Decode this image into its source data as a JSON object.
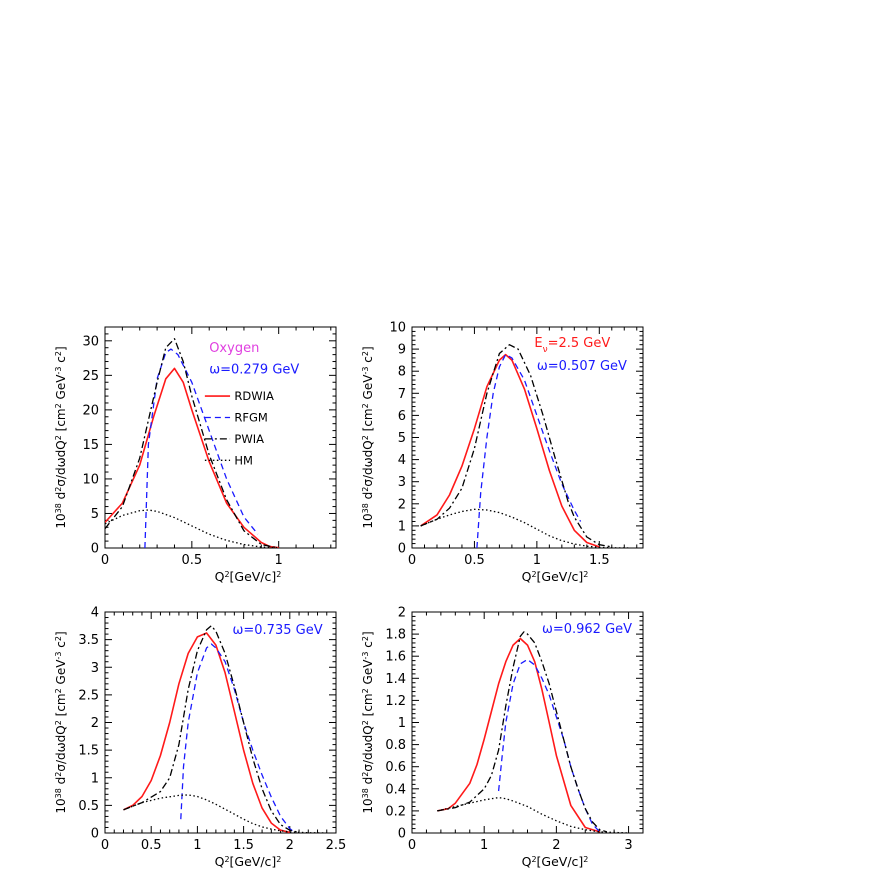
{
  "chart_data": [
    {
      "type": "line",
      "xlabel": "Q²[GeV/c]²",
      "ylabel": "10³⁸ d²σ/dωdQ² [cm² GeV⁻³ c²]",
      "xlim": [
        0,
        1.33
      ],
      "ylim": [
        0,
        32
      ],
      "xticks": [
        0,
        0.5,
        1
      ],
      "xtick_labels": [
        "0",
        "0.5",
        "1"
      ],
      "yticks": [
        0,
        5,
        10,
        15,
        20,
        25,
        30
      ],
      "ytick_labels": [
        "0",
        "5",
        "10",
        "15",
        "20",
        "25",
        "30"
      ],
      "annotations": [
        {
          "text": "Oxygen",
          "color": "#e040e0",
          "x": 0.6,
          "y": 28.4
        },
        {
          "text": "ω=0.279 GeV",
          "color": "#1a1aff",
          "x": 0.6,
          "y": 25.3
        }
      ],
      "legend": {
        "placement": "right-middle",
        "entries": [
          {
            "name": "RDWIA",
            "color": "#ff1a1a",
            "dash": "solid"
          },
          {
            "name": "RFGM",
            "color": "#1a1aff",
            "dash": "dashed"
          },
          {
            "name": "PWIA",
            "color": "#000000",
            "dash": "dashdot"
          },
          {
            "name": "HM",
            "color": "#000000",
            "dash": "dotted"
          }
        ]
      },
      "series": [
        {
          "name": "RDWIA",
          "color": "#ff1a1a",
          "dash": "solid",
          "x": [
            0,
            0.1,
            0.2,
            0.28,
            0.35,
            0.4,
            0.45,
            0.5,
            0.6,
            0.7,
            0.8,
            0.9,
            0.95,
            1.0
          ],
          "y": [
            3.7,
            6.5,
            12,
            19,
            24.5,
            26,
            24,
            20,
            12.5,
            6.5,
            3,
            0.8,
            0.2,
            0.05
          ]
        },
        {
          "name": "RFGM",
          "color": "#1a1aff",
          "dash": "dashed",
          "x": [
            0.23,
            0.25,
            0.3,
            0.35,
            0.38,
            0.42,
            0.5,
            0.6,
            0.7,
            0.8,
            0.88
          ],
          "y": [
            0,
            15,
            24.5,
            28.3,
            28.8,
            28,
            24,
            17,
            10,
            4.5,
            2.0
          ]
        },
        {
          "name": "PWIA",
          "color": "#000000",
          "dash": "dashdot",
          "x": [
            0,
            0.1,
            0.2,
            0.3,
            0.35,
            0.4,
            0.45,
            0.5,
            0.6,
            0.7,
            0.8,
            0.9,
            0.98
          ],
          "y": [
            2.8,
            6,
            13,
            24,
            29,
            30.3,
            27,
            22,
            13.5,
            7,
            2.5,
            0.5,
            0.1
          ]
        },
        {
          "name": "HM",
          "color": "#000000",
          "dash": "dotted",
          "x": [
            0,
            0.1,
            0.2,
            0.25,
            0.3,
            0.4,
            0.5,
            0.6,
            0.7,
            0.8,
            0.9,
            1.0
          ],
          "y": [
            3.5,
            4.7,
            5.4,
            5.5,
            5.3,
            4.4,
            3.2,
            2.0,
            1.1,
            0.5,
            0.15,
            0.05
          ]
        }
      ]
    },
    {
      "type": "line",
      "xlabel": "Q²[GeV/c]²",
      "ylabel": "10³⁸ d²σ/dωdQ² [cm² GeV⁻³ c²]",
      "xlim": [
        0,
        1.85
      ],
      "ylim": [
        0,
        10
      ],
      "xticks": [
        0,
        0.5,
        1,
        1.5
      ],
      "xtick_labels": [
        "0",
        "0.5",
        "1",
        "1.5"
      ],
      "yticks": [
        0,
        1,
        2,
        3,
        4,
        5,
        6,
        7,
        8,
        9,
        10
      ],
      "ytick_labels": [
        "0",
        "1",
        "2",
        "3",
        "4",
        "5",
        "6",
        "7",
        "8",
        "9",
        "10"
      ],
      "annotations": [
        {
          "text": "Eν=2.5 GeV",
          "color": "#ff1a1a",
          "x": 0.98,
          "y": 9.1
        },
        {
          "text": "ω=0.507 GeV",
          "color": "#1a1aff",
          "x": 1.0,
          "y": 8.05
        }
      ],
      "series": [
        {
          "name": "RDWIA",
          "color": "#ff1a1a",
          "dash": "solid",
          "x": [
            0.07,
            0.2,
            0.3,
            0.4,
            0.5,
            0.6,
            0.7,
            0.75,
            0.8,
            0.9,
            1.0,
            1.1,
            1.2,
            1.3,
            1.4,
            1.5
          ],
          "y": [
            1.0,
            1.5,
            2.4,
            3.7,
            5.4,
            7.3,
            8.5,
            8.75,
            8.5,
            7.2,
            5.4,
            3.5,
            1.9,
            0.8,
            0.25,
            0.05
          ]
        },
        {
          "name": "RFGM",
          "color": "#1a1aff",
          "dash": "dashed",
          "x": [
            0.52,
            0.55,
            0.6,
            0.65,
            0.7,
            0.75,
            0.8,
            0.9,
            1.0,
            1.1,
            1.2,
            1.3,
            1.35
          ],
          "y": [
            0,
            2.5,
            5,
            7,
            8.2,
            8.75,
            8.6,
            7.6,
            6.0,
            4.4,
            2.9,
            1.7,
            1.2
          ]
        },
        {
          "name": "PWIA",
          "color": "#000000",
          "dash": "dashdot",
          "x": [
            0.07,
            0.2,
            0.3,
            0.4,
            0.5,
            0.6,
            0.7,
            0.78,
            0.85,
            0.95,
            1.05,
            1.15,
            1.25,
            1.3,
            1.4,
            1.5,
            1.6
          ],
          "y": [
            1.0,
            1.3,
            1.8,
            2.7,
            4.5,
            7.0,
            8.8,
            9.2,
            9.0,
            7.8,
            6.0,
            4.0,
            2.1,
            1.4,
            0.5,
            0.15,
            0.05
          ]
        },
        {
          "name": "HM",
          "color": "#000000",
          "dash": "dotted",
          "x": [
            0.07,
            0.2,
            0.3,
            0.4,
            0.5,
            0.6,
            0.7,
            0.8,
            0.9,
            1.0,
            1.1,
            1.2,
            1.3,
            1.4,
            1.5,
            1.6,
            1.75
          ],
          "y": [
            1.0,
            1.3,
            1.5,
            1.65,
            1.75,
            1.72,
            1.6,
            1.4,
            1.15,
            0.85,
            0.55,
            0.33,
            0.18,
            0.08,
            0.03,
            0.01,
            0
          ]
        }
      ]
    },
    {
      "type": "line",
      "xlabel": "Q²[GeV/c]²",
      "ylabel": "10³⁸ d²σ/dωdQ² [cm² GeV⁻³ c²]",
      "xlim": [
        0,
        2.5
      ],
      "ylim": [
        0,
        4
      ],
      "xticks": [
        0,
        0.5,
        1,
        1.5,
        2,
        2.5
      ],
      "xtick_labels": [
        "0",
        "0.5",
        "1",
        "1.5",
        "2",
        "2.5"
      ],
      "yticks": [
        0,
        0.5,
        1,
        1.5,
        2,
        2.5,
        3,
        3.5,
        4
      ],
      "ytick_labels": [
        "0",
        "0.5",
        "1",
        "1.5",
        "2",
        "2.5",
        "3",
        "3.5",
        "4"
      ],
      "annotations": [
        {
          "text": "ω=0.735 GeV",
          "color": "#1a1aff",
          "x": 1.38,
          "y": 3.6
        }
      ],
      "series": [
        {
          "name": "RDWIA",
          "color": "#ff1a1a",
          "dash": "solid",
          "x": [
            0.2,
            0.3,
            0.4,
            0.5,
            0.6,
            0.7,
            0.8,
            0.9,
            1.0,
            1.1,
            1.2,
            1.3,
            1.4,
            1.5,
            1.6,
            1.7,
            1.8,
            1.9,
            2.0
          ],
          "y": [
            0.42,
            0.5,
            0.66,
            0.95,
            1.4,
            2.0,
            2.7,
            3.25,
            3.55,
            3.62,
            3.4,
            2.9,
            2.2,
            1.5,
            0.9,
            0.45,
            0.18,
            0.05,
            0.01
          ]
        },
        {
          "name": "RFGM",
          "color": "#1a1aff",
          "dash": "dashed",
          "x": [
            0.82,
            0.85,
            0.9,
            1.0,
            1.1,
            1.15,
            1.2,
            1.3,
            1.4,
            1.5,
            1.6,
            1.7,
            1.8,
            1.9,
            2.0,
            2.05
          ],
          "y": [
            0.25,
            1.2,
            2.0,
            2.9,
            3.35,
            3.42,
            3.35,
            3.1,
            2.6,
            2.0,
            1.5,
            1.05,
            0.65,
            0.3,
            0.08,
            0.01
          ]
        },
        {
          "name": "PWIA",
          "color": "#000000",
          "dash": "dashdot",
          "x": [
            0.2,
            0.4,
            0.6,
            0.7,
            0.8,
            0.9,
            1.0,
            1.1,
            1.15,
            1.2,
            1.3,
            1.4,
            1.5,
            1.6,
            1.7,
            1.8,
            1.9,
            2.0,
            2.1
          ],
          "y": [
            0.42,
            0.55,
            0.75,
            1.0,
            1.6,
            2.6,
            3.3,
            3.68,
            3.75,
            3.65,
            3.25,
            2.65,
            2.0,
            1.35,
            0.8,
            0.4,
            0.15,
            0.05,
            0.01
          ]
        },
        {
          "name": "HM",
          "color": "#000000",
          "dash": "dotted",
          "x": [
            0.2,
            0.4,
            0.6,
            0.8,
            0.9,
            1.0,
            1.1,
            1.2,
            1.3,
            1.4,
            1.5,
            1.6,
            1.7,
            1.8,
            1.9,
            2.0,
            2.2,
            2.4
          ],
          "y": [
            0.42,
            0.55,
            0.63,
            0.68,
            0.69,
            0.66,
            0.6,
            0.52,
            0.43,
            0.34,
            0.25,
            0.17,
            0.11,
            0.07,
            0.04,
            0.02,
            0.005,
            0
          ]
        }
      ]
    },
    {
      "type": "line",
      "xlabel": "Q²[GeV/c]²",
      "ylabel": "10³⁸ d²σ/dωdQ² [cm² GeV⁻³ c²]",
      "xlim": [
        0,
        3.2
      ],
      "ylim": [
        0,
        2
      ],
      "xticks": [
        0,
        1,
        2,
        3
      ],
      "xtick_labels": [
        "0",
        "1",
        "2",
        "3"
      ],
      "yticks": [
        0,
        0.2,
        0.4,
        0.6,
        0.8,
        1,
        1.2,
        1.4,
        1.6,
        1.8,
        2
      ],
      "ytick_labels": [
        "0",
        "0.2",
        "0.4",
        "0.6",
        "0.8",
        "1",
        "1.2",
        "1.4",
        "1.6",
        "1.8",
        "2"
      ],
      "annotations": [
        {
          "text": "ω=0.962 GeV",
          "color": "#1a1aff",
          "x": 1.8,
          "y": 1.81
        }
      ],
      "series": [
        {
          "name": "RDWIA",
          "color": "#ff1a1a",
          "dash": "solid",
          "x": [
            0.35,
            0.5,
            0.6,
            0.8,
            0.9,
            1.0,
            1.1,
            1.2,
            1.3,
            1.4,
            1.5,
            1.6,
            1.7,
            1.8,
            1.9,
            2.0,
            2.2,
            2.4,
            2.6
          ],
          "y": [
            0.2,
            0.22,
            0.27,
            0.45,
            0.62,
            0.85,
            1.1,
            1.35,
            1.55,
            1.7,
            1.76,
            1.7,
            1.55,
            1.3,
            1.0,
            0.7,
            0.25,
            0.05,
            0.01
          ]
        },
        {
          "name": "RFGM",
          "color": "#1a1aff",
          "dash": "dashed",
          "x": [
            1.2,
            1.25,
            1.3,
            1.4,
            1.5,
            1.6,
            1.7,
            1.8,
            1.9,
            2.0,
            2.1,
            2.2,
            2.3,
            2.4,
            2.5,
            2.6
          ],
          "y": [
            0.38,
            0.7,
            1.0,
            1.35,
            1.53,
            1.57,
            1.52,
            1.4,
            1.25,
            1.05,
            0.85,
            0.6,
            0.4,
            0.22,
            0.08,
            0.01
          ]
        },
        {
          "name": "PWIA",
          "color": "#000000",
          "dash": "dashdot",
          "x": [
            0.35,
            0.6,
            0.8,
            1.0,
            1.1,
            1.2,
            1.3,
            1.4,
            1.5,
            1.55,
            1.6,
            1.7,
            1.8,
            1.9,
            2.0,
            2.1,
            2.2,
            2.3,
            2.4,
            2.5,
            2.6,
            2.7
          ],
          "y": [
            0.2,
            0.23,
            0.28,
            0.4,
            0.52,
            0.75,
            1.15,
            1.5,
            1.78,
            1.82,
            1.8,
            1.72,
            1.55,
            1.35,
            1.1,
            0.85,
            0.6,
            0.4,
            0.22,
            0.1,
            0.03,
            0.01
          ]
        },
        {
          "name": "HM",
          "color": "#000000",
          "dash": "dotted",
          "x": [
            0.35,
            0.6,
            0.8,
            1.0,
            1.2,
            1.3,
            1.4,
            1.6,
            1.8,
            2.0,
            2.2,
            2.4,
            2.6,
            2.8,
            3.0
          ],
          "y": [
            0.2,
            0.24,
            0.27,
            0.3,
            0.32,
            0.31,
            0.29,
            0.24,
            0.17,
            0.11,
            0.06,
            0.03,
            0.01,
            0.005,
            0
          ]
        }
      ]
    }
  ]
}
